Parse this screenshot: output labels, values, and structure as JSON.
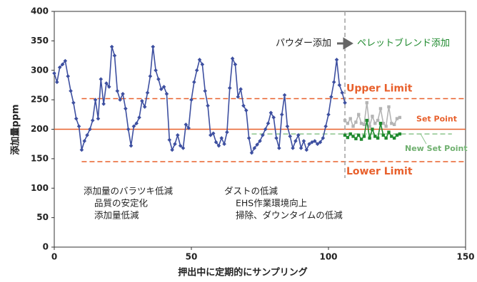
{
  "chart_data": {
    "type": "line",
    "xlabel": "押出中に定期的にサンプリング",
    "ylabel": "添加量ppm",
    "xlim": [
      0,
      150
    ],
    "xticks": [
      0,
      50,
      100,
      150
    ],
    "ylim": [
      0,
      400
    ],
    "yticks": [
      0,
      50,
      100,
      150,
      200,
      250,
      300,
      350,
      400
    ],
    "series": [
      {
        "name": "パウダー添加",
        "color": "#3d4fa0",
        "marker": "diamond",
        "x": [
          0,
          1,
          2,
          3,
          4,
          5,
          6,
          7,
          8,
          9,
          10,
          11,
          12,
          13,
          14,
          15,
          16,
          17,
          18,
          19,
          20,
          21,
          22,
          23,
          24,
          25,
          26,
          27,
          28,
          29,
          30,
          31,
          32,
          33,
          34,
          35,
          36,
          37,
          38,
          39,
          40,
          41,
          42,
          43,
          44,
          45,
          46,
          47,
          48,
          49,
          50,
          51,
          52,
          53,
          54,
          55,
          56,
          57,
          58,
          59,
          60,
          61,
          62,
          63,
          64,
          65,
          66,
          67,
          68,
          69,
          70,
          71,
          72,
          73,
          74,
          75,
          76,
          77,
          78,
          79,
          80,
          81,
          82,
          83,
          84,
          85,
          86,
          87,
          88,
          89,
          90,
          91,
          92,
          93,
          94,
          95,
          96,
          97,
          98,
          99,
          100,
          101,
          102,
          103,
          104,
          105,
          106
        ],
        "values": [
          295,
          280,
          305,
          310,
          316,
          290,
          265,
          245,
          218,
          205,
          165,
          180,
          190,
          200,
          215,
          250,
          218,
          285,
          243,
          278,
          272,
          340,
          325,
          265,
          250,
          260,
          235,
          200,
          172,
          205,
          210,
          220,
          248,
          238,
          262,
          290,
          340,
          300,
          285,
          268,
          272,
          260,
          182,
          165,
          175,
          190,
          172,
          168,
          208,
          202,
          250,
          280,
          300,
          318,
          310,
          265,
          240,
          190,
          193,
          178,
          172,
          185,
          175,
          195,
          270,
          320,
          310,
          255,
          268,
          240,
          232,
          185,
          160,
          168,
          174,
          180,
          190,
          200,
          210,
          228,
          220,
          185,
          168,
          225,
          258,
          205,
          188,
          168,
          180,
          190,
          168,
          180,
          165,
          175,
          178,
          180,
          175,
          178,
          185,
          205,
          225,
          255,
          280,
          318,
          275,
          262,
          245
        ]
      },
      {
        "color": "#b4b4b4",
        "marker": "square",
        "x": [
          106,
          107,
          108,
          109,
          110,
          111,
          112,
          113,
          114,
          115,
          116,
          117,
          118,
          119,
          120,
          121,
          122,
          123,
          124,
          125,
          126
        ],
        "values": [
          215,
          210,
          218,
          205,
          212,
          225,
          210,
          208,
          245,
          205,
          222,
          210,
          215,
          235,
          210,
          205,
          238,
          210,
          208,
          218,
          220
        ]
      },
      {
        "name": "ペレットブレンド添加",
        "color": "#1f8a2e",
        "marker": "square",
        "x": [
          106,
          107,
          108,
          109,
          110,
          111,
          112,
          113,
          114,
          115,
          116,
          117,
          118,
          119,
          120,
          121,
          122,
          123,
          124,
          125,
          126
        ],
        "values": [
          190,
          186,
          192,
          188,
          184,
          190,
          183,
          188,
          215,
          185,
          200,
          188,
          185,
          210,
          190,
          185,
          195,
          188,
          185,
          190,
          192
        ]
      }
    ],
    "reference_lines": [
      {
        "label": "Upper Limit",
        "value": 252,
        "xrange": [
          10,
          150
        ],
        "color": "#e8602c",
        "style": "dashed"
      },
      {
        "label": "Set Point",
        "value": 200,
        "xrange": [
          0,
          150
        ],
        "color": "#e8602c",
        "style": "solid"
      },
      {
        "label": "New Set Point",
        "value": 192,
        "xrange": [
          72,
          145
        ],
        "color": "#8cc48c",
        "style": "dashed"
      },
      {
        "label": "Lower Limit",
        "value": 145,
        "xrange": [
          10,
          150
        ],
        "color": "#e8602c",
        "style": "dashed"
      }
    ],
    "vertical_line": {
      "value": 106,
      "color": "#a0a0a0"
    },
    "annotations": [
      [
        "添加量のバラツキ低減",
        "品質の安定化",
        "添加量低減"
      ],
      [
        "ダストの低減",
        "EHS作業環境向上",
        "掃除、ダウンタイムの低減"
      ]
    ]
  }
}
